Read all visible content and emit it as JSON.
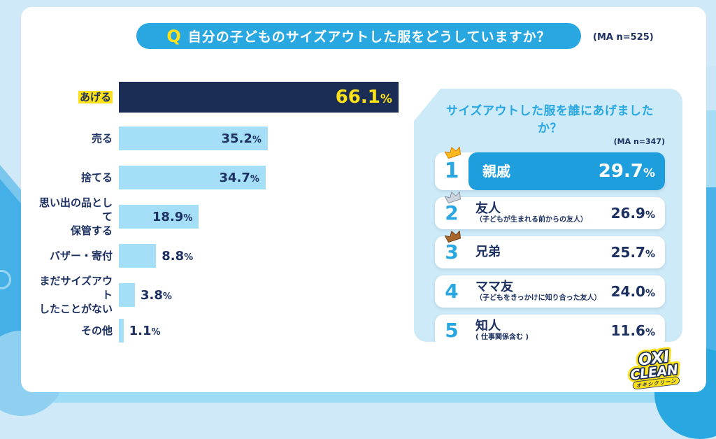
{
  "header": {
    "q_label": "Q",
    "title": "自分の子どものサイズアウトした服をどうしていますか？",
    "sample": "(MA n=525)"
  },
  "chart_data": {
    "type": "bar",
    "orientation": "horizontal",
    "unit": "%",
    "xlim": [
      0,
      70
    ],
    "categories": [
      "あげる",
      "売る",
      "捨てる",
      "思い出の品として保管する",
      "バザー・寄付",
      "まだサイズアウトしたことがない",
      "その他"
    ],
    "values": [
      66.1,
      35.2,
      34.7,
      18.9,
      8.8,
      3.8,
      1.1
    ],
    "highlight_category": "あげる",
    "bars": [
      {
        "label": "あげる",
        "label_lines": [
          "あげる"
        ],
        "value": 66.1,
        "display": "66.1",
        "highlight": true
      },
      {
        "label": "売る",
        "label_lines": [
          "売る"
        ],
        "value": 35.2,
        "display": "35.2",
        "highlight": false
      },
      {
        "label": "捨てる",
        "label_lines": [
          "捨てる"
        ],
        "value": 34.7,
        "display": "34.7",
        "highlight": false
      },
      {
        "label": "思い出の品として保管する",
        "label_lines": [
          "思い出の品として",
          "保管する"
        ],
        "value": 18.9,
        "display": "18.9",
        "highlight": false
      },
      {
        "label": "バザー・寄付",
        "label_lines": [
          "バザー・寄付"
        ],
        "value": 8.8,
        "display": "8.8",
        "highlight": false
      },
      {
        "label": "まだサイズアウトしたことがない",
        "label_lines": [
          "まだサイズアウト",
          "したことがない"
        ],
        "value": 3.8,
        "display": "3.8",
        "highlight": false
      },
      {
        "label": "その他",
        "label_lines": [
          "その他"
        ],
        "value": 1.1,
        "display": "1.1",
        "highlight": false
      }
    ]
  },
  "ranking_panel": {
    "title": "サイズアウトした服を誰にあげましたか？",
    "sample": "(MA n=347)",
    "unit": "%",
    "items": [
      {
        "rank": "1",
        "label": "親戚",
        "sub": "",
        "value": 29.7,
        "display": "29.7",
        "crown": "gold",
        "highlight": true
      },
      {
        "rank": "2",
        "label": "友人",
        "sub": "（子どもが生まれる前からの友人）",
        "value": 26.9,
        "display": "26.9",
        "crown": "silver",
        "highlight": false
      },
      {
        "rank": "3",
        "label": "兄弟",
        "sub": "",
        "value": 25.7,
        "display": "25.7",
        "crown": "bronze",
        "highlight": false
      },
      {
        "rank": "4",
        "label": "ママ友",
        "sub": "（子どもをきっかけに知り合った友人）",
        "value": 24.0,
        "display": "24.0",
        "crown": null,
        "highlight": false
      },
      {
        "rank": "5",
        "label": "知人",
        "sub": "( 仕事関係含む )",
        "value": 11.6,
        "display": "11.6",
        "crown": null,
        "highlight": false
      }
    ]
  },
  "logo": {
    "line1": "OXI",
    "line2": "CLEAN",
    "subtitle": "オキシクリーン"
  },
  "colors": {
    "accent_blue": "#29A7E1",
    "dark_navy_bar": "#1C2D55",
    "light_blue_bar": "#A5DFF7",
    "highlight_yellow": "#FFE11A",
    "panel_bg": "#CDEAF9",
    "rank1_pill_blue": "#1E9EDC",
    "text_navy": "#1C3061",
    "crown_gold": "#FFB81C",
    "crown_silver": "#CBD3DC",
    "crown_bronze": "#A9652C"
  }
}
